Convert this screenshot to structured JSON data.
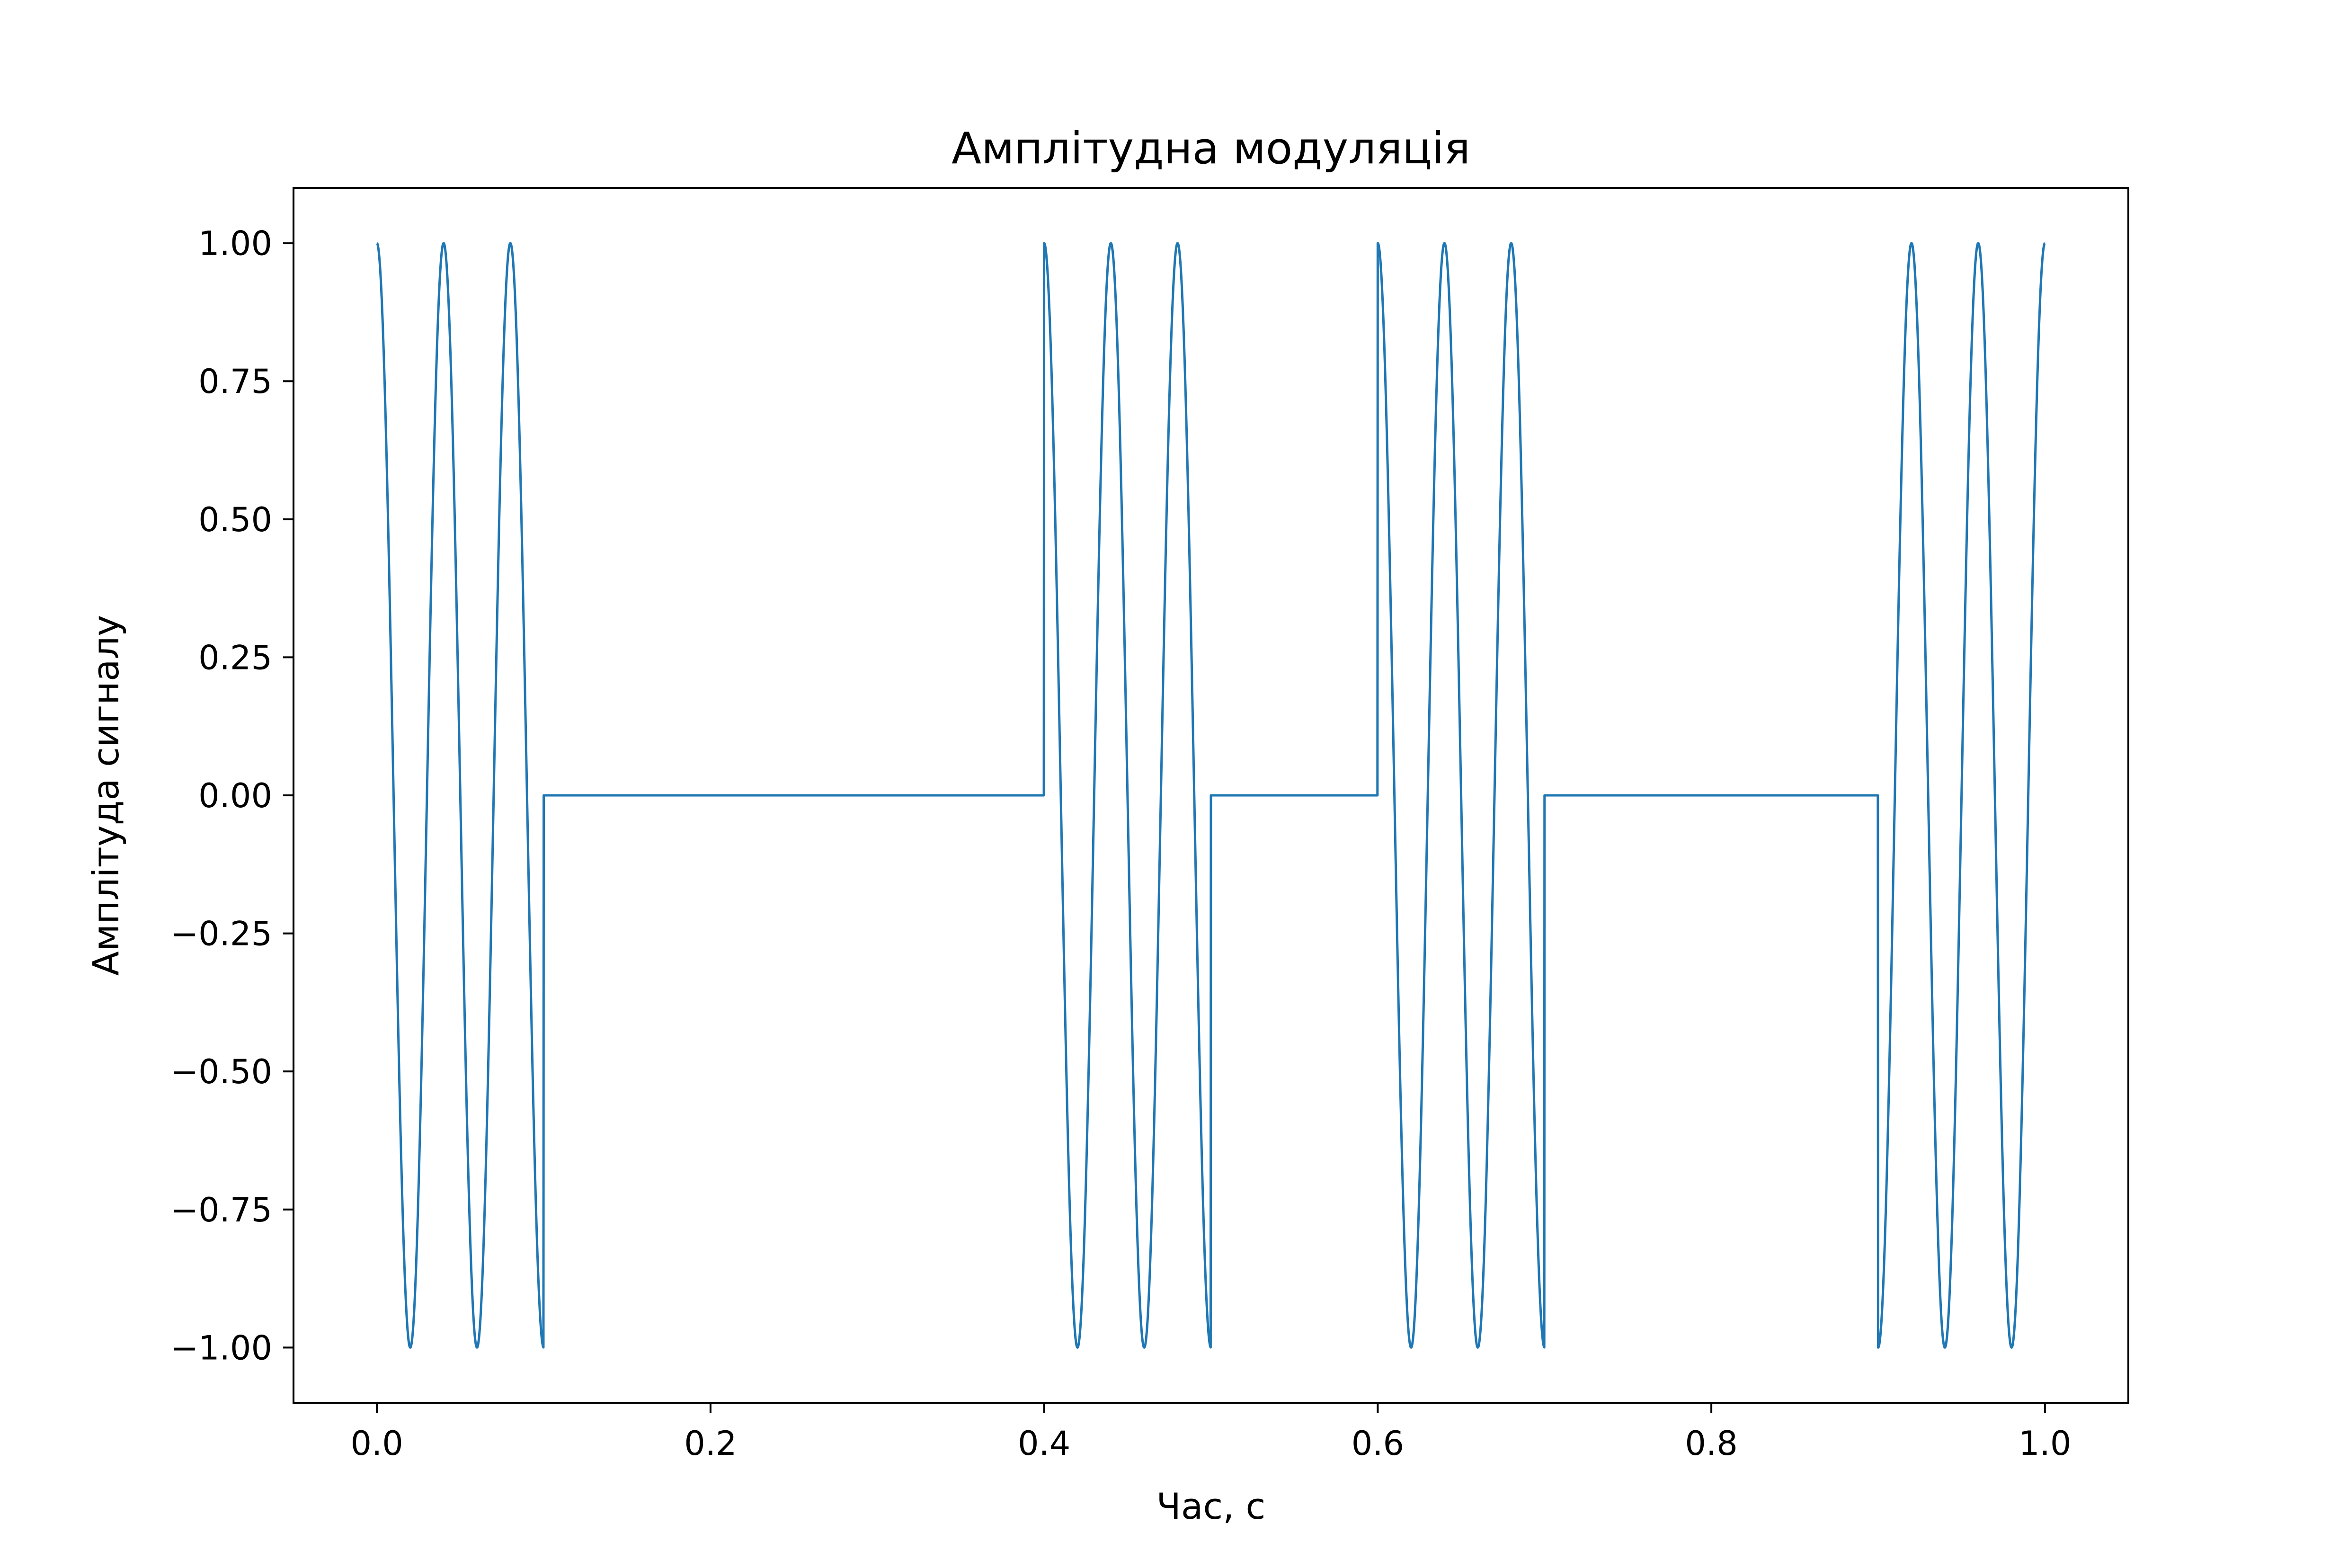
{
  "chart_data": {
    "type": "line",
    "title": "Амплітудна модуляція",
    "xlabel": "Час, с",
    "ylabel": "Амплітуда сигналу",
    "xlim": [
      -0.05,
      1.05
    ],
    "ylim": [
      -1.1,
      1.1
    ],
    "grid": false,
    "legend": "none",
    "x_ticks": [
      0.0,
      0.2,
      0.4,
      0.6,
      0.8,
      1.0
    ],
    "x_tick_labels": [
      "0.0",
      "0.2",
      "0.4",
      "0.6",
      "0.8",
      "1.0"
    ],
    "y_ticks": [
      1.0,
      0.75,
      0.5,
      0.25,
      0.0,
      -0.25,
      -0.5,
      -0.75,
      -1.0
    ],
    "y_tick_labels": [
      "1.00",
      "0.75",
      "0.50",
      "0.25",
      "0.00",
      "−0.25",
      "−0.50",
      "−0.75",
      "−1.00"
    ],
    "series": [
      {
        "color": "#1f77b4",
        "carrier": "cos(2π·25·t)",
        "carrier_frequency_hz": 25,
        "t_range": [
          0.0,
          1.0
        ],
        "bits": [
          1,
          0,
          0,
          0,
          1,
          0,
          1,
          0,
          0,
          1
        ],
        "bit_duration_s": 0.1
      }
    ]
  }
}
